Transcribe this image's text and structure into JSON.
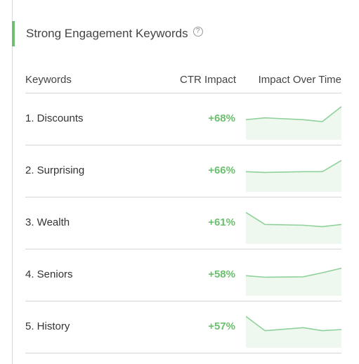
{
  "card": {
    "title": "Strong Engagement Keywords",
    "info_icon": "info-icon",
    "info_glyph": "?"
  },
  "table": {
    "headers": {
      "keyword": "Keywords",
      "ctr": "CTR Impact",
      "time": "Impact Over Time"
    },
    "rows": [
      {
        "keyword": "1. Discounts",
        "ctr": "+68%",
        "trend": [
          5,
          5.5,
          5,
          4.5,
          8.5
        ]
      },
      {
        "keyword": "2. Surprising",
        "ctr": "+66%",
        "trend": [
          5,
          4.8,
          5,
          5,
          8
        ]
      },
      {
        "keyword": "3. Wealth",
        "ctr": "+61%",
        "trend": [
          8,
          4.8,
          4.6,
          4.2,
          4.8
        ]
      },
      {
        "keyword": "4. Seniors",
        "ctr": "+58%",
        "trend": [
          5,
          4.6,
          4.7,
          5.8,
          7
        ]
      },
      {
        "keyword": "5. History",
        "ctr": "+57%",
        "trend": [
          8,
          4.2,
          5,
          4.2,
          4.5
        ]
      }
    ]
  },
  "colors": {
    "accent": "#6fbf73",
    "positive": "#6cbf6f",
    "sparkline_stroke": "#8fd19a",
    "sparkline_fill": "#eef8ef"
  }
}
